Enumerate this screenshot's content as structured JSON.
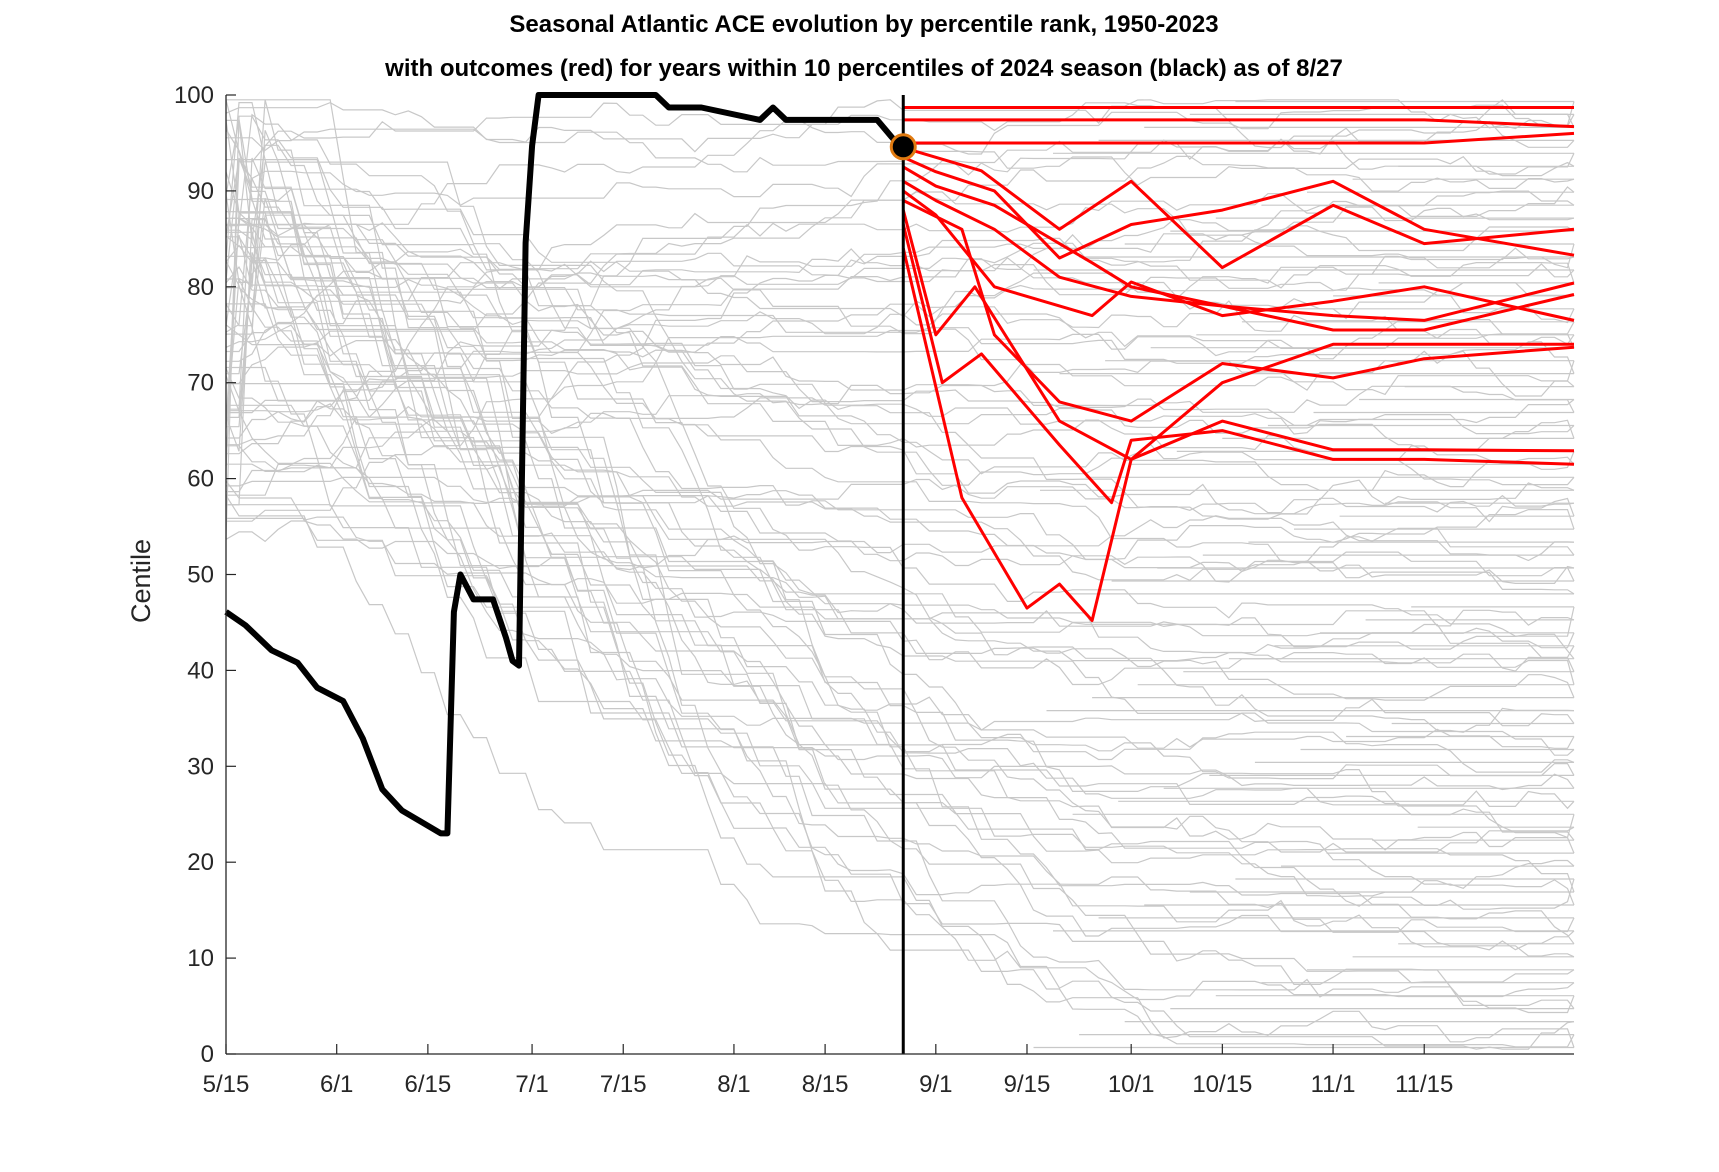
{
  "chart_data": {
    "type": "line",
    "title": "Seasonal Atlantic ACE evolution by percentile rank, 1950-2023",
    "subtitle": "with outcomes (red) for years within 10 percentiles of 2024 season (black) as of 8/27",
    "xlabel": "",
    "ylabel": "Centile",
    "x_domain": [
      "5/15",
      "12/8"
    ],
    "x_ticks": [
      "5/15",
      "6/1",
      "6/15",
      "7/1",
      "7/15",
      "8/1",
      "8/15",
      "9/1",
      "9/15",
      "10/1",
      "10/15",
      "11/1",
      "11/15"
    ],
    "y_ticks": [
      0,
      10,
      20,
      30,
      40,
      50,
      60,
      70,
      80,
      90,
      100
    ],
    "ylim": [
      0,
      100
    ],
    "grid": false,
    "current_date": "8/27",
    "current_value": 94.6,
    "colors": {
      "current_season": "#000000",
      "analog_outcomes": "#ff0000",
      "other_years": "#c8c8c8",
      "current_marker_edge": "#e07a10"
    },
    "series_2024": {
      "x": [
        "5/15",
        "5/18",
        "5/22",
        "5/26",
        "5/29",
        "6/2",
        "6/5",
        "6/8",
        "6/11",
        "6/14",
        "6/17",
        "6/18",
        "6/19",
        "6/20",
        "6/22",
        "6/25",
        "6/27",
        "6/28",
        "6/29",
        "6/30",
        "7/1",
        "7/2",
        "7/20",
        "7/22",
        "7/27",
        "8/5",
        "8/7",
        "8/9",
        "8/21",
        "8/23",
        "8/26",
        "8/27"
      ],
      "y": [
        46.1,
        44.7,
        42.1,
        40.8,
        38.2,
        36.8,
        32.9,
        27.6,
        25.4,
        24.2,
        23.0,
        23.0,
        46.1,
        50.0,
        47.4,
        47.4,
        43.4,
        41.0,
        40.5,
        84.6,
        94.7,
        100.0,
        100.0,
        98.7,
        98.7,
        97.4,
        98.7,
        97.4,
        97.4,
        97.4,
        95.0,
        94.6
      ]
    },
    "analog_outcomes": [
      {
        "x": [
          "8/27",
          "9/1",
          "9/15",
          "10/1",
          "10/15",
          "11/1",
          "11/15",
          "12/8"
        ],
        "y": [
          98.7,
          98.7,
          98.7,
          98.7,
          98.7,
          98.7,
          98.7,
          98.7
        ]
      },
      {
        "x": [
          "8/27",
          "9/1",
          "9/15",
          "10/1",
          "10/15",
          "11/1",
          "11/15",
          "12/8"
        ],
        "y": [
          97.4,
          97.4,
          97.4,
          97.4,
          97.4,
          97.4,
          97.4,
          96.7
        ]
      },
      {
        "x": [
          "8/27",
          "9/1",
          "9/15",
          "10/1",
          "10/15",
          "11/1",
          "11/15",
          "12/8"
        ],
        "y": [
          95.0,
          95.0,
          95.0,
          95.0,
          95.0,
          95.0,
          95.0,
          96.0
        ]
      },
      {
        "x": [
          "8/27",
          "9/1",
          "9/8",
          "9/20",
          "10/1",
          "10/15",
          "11/1",
          "11/15",
          "12/8"
        ],
        "y": [
          94.5,
          93.5,
          92.1,
          86.0,
          91.0,
          82.0,
          88.5,
          84.5,
          86.0
        ]
      },
      {
        "x": [
          "8/27",
          "9/1",
          "9/10",
          "9/20",
          "10/1",
          "10/15",
          "11/1",
          "11/15",
          "12/8"
        ],
        "y": [
          93.5,
          92.0,
          90.0,
          83.0,
          86.5,
          88.0,
          91.0,
          86.0,
          83.3
        ]
      },
      {
        "x": [
          "8/27",
          "9/1",
          "9/10",
          "9/25",
          "10/1",
          "10/15",
          "11/1",
          "11/15",
          "12/8"
        ],
        "y": [
          92.5,
          90.5,
          88.5,
          82.5,
          80.0,
          78.0,
          77.0,
          76.5,
          80.4
        ]
      },
      {
        "x": [
          "8/27",
          "9/1",
          "9/10",
          "9/20",
          "10/1",
          "10/15",
          "11/1",
          "11/15",
          "12/8"
        ],
        "y": [
          91.0,
          89.0,
          86.0,
          81.0,
          79.0,
          78.0,
          75.5,
          75.5,
          79.2
        ]
      },
      {
        "x": [
          "8/27",
          "9/1",
          "9/10",
          "9/25",
          "10/1",
          "10/15",
          "11/1",
          "11/15",
          "12/8"
        ],
        "y": [
          90.0,
          87.5,
          80.0,
          77.0,
          80.5,
          77.0,
          78.5,
          80.0,
          76.5
        ]
      },
      {
        "x": [
          "8/27",
          "9/5",
          "9/10",
          "9/20",
          "10/1",
          "10/15",
          "11/1",
          "11/15",
          "12/8"
        ],
        "y": [
          89.0,
          86.0,
          75.0,
          68.0,
          66.0,
          72.0,
          70.5,
          72.5,
          73.7
        ]
      },
      {
        "x": [
          "8/27",
          "9/1",
          "9/7",
          "9/20",
          "10/1",
          "10/15",
          "11/1",
          "11/15",
          "12/8"
        ],
        "y": [
          88.0,
          75.0,
          80.0,
          66.0,
          62.0,
          66.0,
          63.0,
          63.0,
          62.9
        ]
      },
      {
        "x": [
          "8/27",
          "9/2",
          "9/8",
          "9/20",
          "9/28",
          "10/1",
          "10/15",
          "11/1",
          "11/15",
          "12/8"
        ],
        "y": [
          86.5,
          70.0,
          73.0,
          63.5,
          57.5,
          64.0,
          65.0,
          62.0,
          62.0,
          61.5
        ]
      },
      {
        "x": [
          "8/27",
          "9/5",
          "9/15",
          "9/20",
          "9/25",
          "10/1",
          "10/15",
          "11/1",
          "11/15",
          "12/8"
        ],
        "y": [
          84.0,
          58.0,
          46.5,
          49.0,
          45.2,
          62.0,
          70.0,
          74.0,
          74.0,
          74.0
        ]
      }
    ]
  }
}
